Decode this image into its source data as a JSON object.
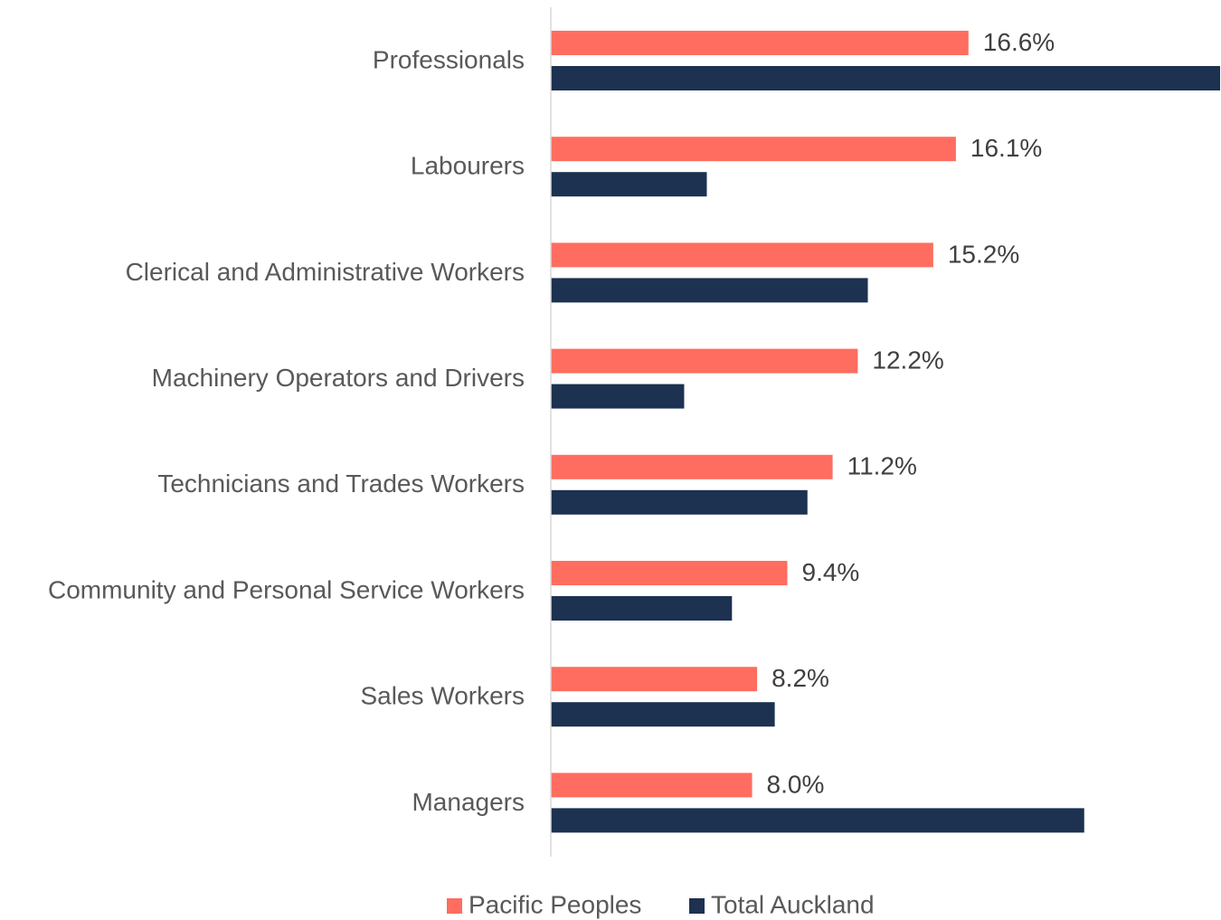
{
  "chart_data": {
    "type": "bar",
    "orientation": "horizontal",
    "categories": [
      "Professionals",
      "Labourers",
      "Clerical and Administrative Workers",
      "Machinery Operators and Drivers",
      "Technicians and Trades Workers",
      "Community and Personal Service Workers",
      "Sales Workers",
      "Managers"
    ],
    "series": [
      {
        "name": "Pacific Peoples",
        "color": "#fe6d5f",
        "values": [
          16.6,
          16.1,
          15.2,
          12.2,
          11.2,
          9.4,
          8.2,
          8.0
        ],
        "value_labels": [
          "16.6%",
          "16.1%",
          "15.2%",
          "12.2%",
          "11.2%",
          "9.4%",
          "8.2%",
          "8.0%"
        ]
      },
      {
        "name": "Total Auckland",
        "color": "#1d3150",
        "values": [
          26.6,
          6.2,
          12.6,
          5.3,
          10.2,
          7.2,
          8.9,
          21.2
        ]
      }
    ],
    "legend": "bottom"
  }
}
